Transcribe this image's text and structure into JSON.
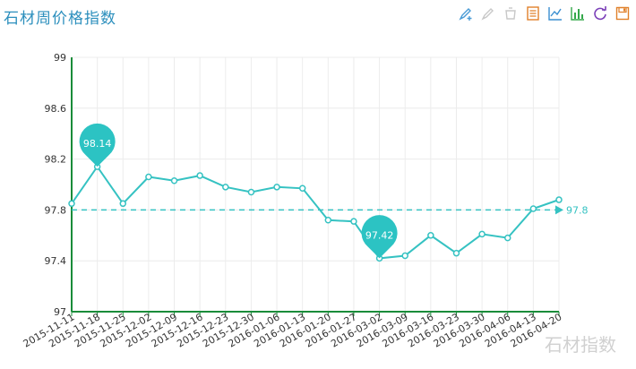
{
  "title": "石材周价格指数",
  "toolbox": [
    {
      "icon": "mark-pen-icon",
      "color": "#4a9bd6"
    },
    {
      "icon": "mark-undo-icon",
      "color": "#c8c8c8"
    },
    {
      "icon": "mark-clear-icon",
      "color": "#c8c8c8"
    },
    {
      "icon": "data-view-icon",
      "color": "#e0802a"
    },
    {
      "icon": "line-chart-icon",
      "color": "#3a8fd1"
    },
    {
      "icon": "bar-chart-icon",
      "color": "#33a84a"
    },
    {
      "icon": "restore-icon",
      "color": "#7b3fb8"
    },
    {
      "icon": "save-image-icon",
      "color": "#e0802a"
    }
  ],
  "watermark": "石材指数",
  "colors": {
    "line": "#35c2c2",
    "axis": "#1a8c3a",
    "grid": "#ececec",
    "pin": "#2cc3c3",
    "title": "#2c8fbd"
  },
  "chart_data": {
    "type": "line",
    "title": "石材周价格指数",
    "categories": [
      "2015-11-11",
      "2015-11-18",
      "2015-11-25",
      "2015-12-02",
      "2015-12-09",
      "2015-12-16",
      "2015-12-23",
      "2015-12-30",
      "2016-01-06",
      "2016-01-13",
      "2016-01-20",
      "2016-01-27",
      "2016-03-02",
      "2016-03-09",
      "2016-03-16",
      "2016-03-23",
      "2016-03-30",
      "2016-04-06",
      "2016-04-13",
      "2016-04-20"
    ],
    "series": [
      {
        "name": "",
        "values": [
          97.85,
          98.14,
          97.85,
          98.06,
          98.03,
          98.07,
          97.98,
          97.94,
          97.98,
          97.97,
          97.72,
          97.71,
          97.42,
          97.44,
          97.6,
          97.46,
          97.61,
          97.58,
          97.81,
          97.88
        ]
      }
    ],
    "y_ticks": [
      "99",
      "98.6",
      "98.2",
      "97.8",
      "97.4",
      "97"
    ],
    "ylim": [
      97,
      99
    ],
    "mark_points": [
      {
        "label": "98.14",
        "value": 98.14,
        "index": 1
      },
      {
        "label": "97.42",
        "value": 97.42,
        "index": 12
      }
    ],
    "mark_line": {
      "label": "97.8",
      "value": 97.8
    },
    "grid": true,
    "legend": "none"
  }
}
